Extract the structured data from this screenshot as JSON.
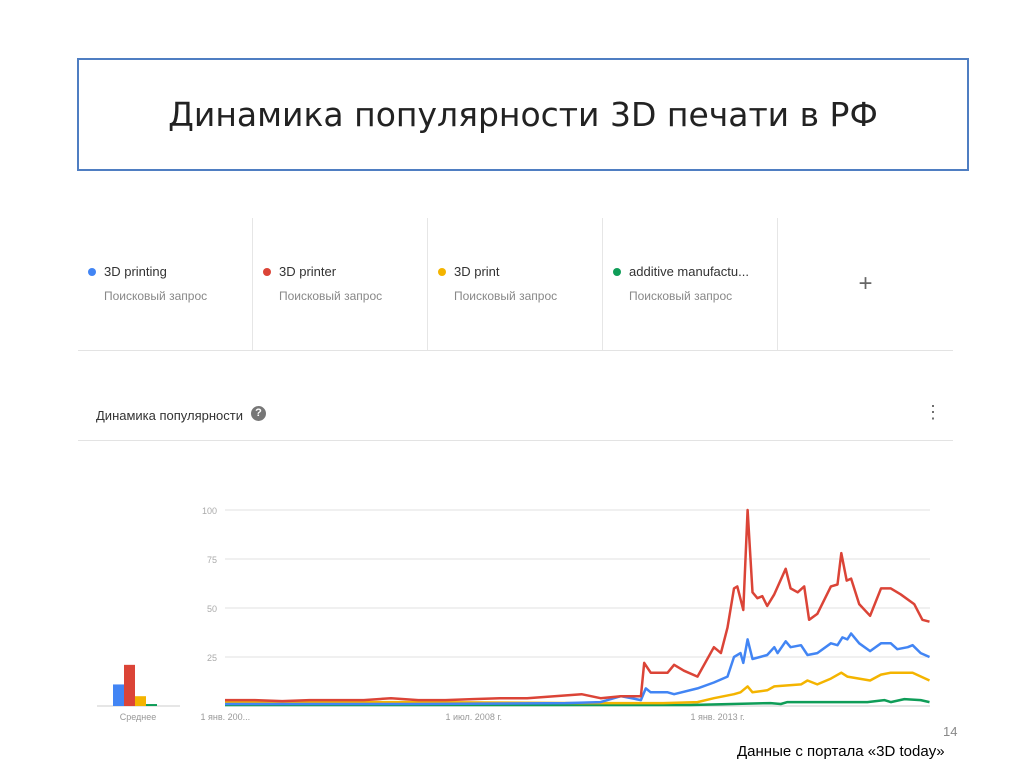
{
  "slide": {
    "title": "Динамика популярности 3D печати  в РФ",
    "footer": "Данные с портала «3D today»",
    "page_number": "14"
  },
  "terms": [
    {
      "label": "3D printing",
      "sub": "Поисковый запрос",
      "color": "#4285f4"
    },
    {
      "label": "3D printer",
      "sub": "Поисковый запрос",
      "color": "#db4437"
    },
    {
      "label": "3D print",
      "sub": "Поисковый запрос",
      "color": "#f4b400"
    },
    {
      "label": "additive manufactu...",
      "sub": "Поисковый запрос",
      "color": "#0f9d58"
    }
  ],
  "add_term_label": "+",
  "panel": {
    "title": "Динамика популярности",
    "help_icon": "?",
    "menu_icon": "⋮"
  },
  "chart_data": {
    "type": "line",
    "title": "Динамика популярности",
    "ylim": [
      0,
      100
    ],
    "xlim": [
      2004.45,
      2017.4
    ],
    "yticks": [
      100,
      75,
      50,
      25
    ],
    "ytick_labels": [
      "100",
      "75",
      "50",
      "25"
    ],
    "xticks": [
      {
        "x": 2004.0,
        "label": "1 янв. 200..."
      },
      {
        "x": 2008.5,
        "label": "1 июл. 2008 г."
      },
      {
        "x": 2013.0,
        "label": "1 янв. 2013 г."
      }
    ],
    "grid": true,
    "average": {
      "label": "Среднее",
      "values": [
        11,
        21,
        5,
        1
      ]
    },
    "series": [
      {
        "name": "3D printing",
        "color": "#4285f4",
        "points": [
          [
            2004.45,
            1
          ],
          [
            2008,
            1
          ],
          [
            2010.7,
            1.5
          ],
          [
            2011.35,
            2
          ],
          [
            2011.72,
            5
          ],
          [
            2012.09,
            3
          ],
          [
            2012.18,
            9
          ],
          [
            2012.27,
            7
          ],
          [
            2012.58,
            7
          ],
          [
            2012.7,
            6
          ],
          [
            2013.13,
            9
          ],
          [
            2013.43,
            12
          ],
          [
            2013.68,
            15
          ],
          [
            2013.8,
            25
          ],
          [
            2013.92,
            27
          ],
          [
            2013.97,
            22
          ],
          [
            2014.05,
            34
          ],
          [
            2014.14,
            24
          ],
          [
            2014.41,
            26
          ],
          [
            2014.54,
            30
          ],
          [
            2014.6,
            27
          ],
          [
            2014.75,
            33
          ],
          [
            2014.84,
            30
          ],
          [
            2015.03,
            31
          ],
          [
            2015.15,
            26
          ],
          [
            2015.33,
            27
          ],
          [
            2015.58,
            32
          ],
          [
            2015.7,
            31
          ],
          [
            2015.79,
            35
          ],
          [
            2015.88,
            34
          ],
          [
            2015.95,
            37
          ],
          [
            2016.1,
            32
          ],
          [
            2016.3,
            28
          ],
          [
            2016.5,
            32
          ],
          [
            2016.68,
            32
          ],
          [
            2016.8,
            29
          ],
          [
            2016.99,
            30
          ],
          [
            2017.08,
            31
          ],
          [
            2017.23,
            27
          ],
          [
            2017.39,
            25
          ]
        ]
      },
      {
        "name": "3D printer",
        "color": "#db4437",
        "points": [
          [
            2004.45,
            3
          ],
          [
            2005,
            3
          ],
          [
            2005.5,
            2.5
          ],
          [
            2006,
            3
          ],
          [
            2006.5,
            3
          ],
          [
            2007,
            3
          ],
          [
            2007.5,
            4
          ],
          [
            2008,
            3
          ],
          [
            2008.5,
            3
          ],
          [
            2009,
            3.5
          ],
          [
            2009.5,
            4
          ],
          [
            2010,
            4
          ],
          [
            2010.5,
            5
          ],
          [
            2011,
            6
          ],
          [
            2011.35,
            4
          ],
          [
            2011.72,
            5
          ],
          [
            2012.09,
            5
          ],
          [
            2012.15,
            22
          ],
          [
            2012.27,
            17
          ],
          [
            2012.58,
            17
          ],
          [
            2012.7,
            21
          ],
          [
            2012.88,
            18
          ],
          [
            2013.13,
            15
          ],
          [
            2013.43,
            30
          ],
          [
            2013.56,
            27
          ],
          [
            2013.68,
            40
          ],
          [
            2013.8,
            60
          ],
          [
            2013.86,
            61
          ],
          [
            2013.97,
            49
          ],
          [
            2014.05,
            100
          ],
          [
            2014.14,
            58
          ],
          [
            2014.23,
            55
          ],
          [
            2014.32,
            56
          ],
          [
            2014.41,
            51
          ],
          [
            2014.54,
            57
          ],
          [
            2014.75,
            70
          ],
          [
            2014.84,
            60
          ],
          [
            2014.97,
            58
          ],
          [
            2015.09,
            61
          ],
          [
            2015.18,
            44
          ],
          [
            2015.33,
            47
          ],
          [
            2015.58,
            61
          ],
          [
            2015.7,
            62
          ],
          [
            2015.77,
            78
          ],
          [
            2015.87,
            64
          ],
          [
            2015.95,
            65
          ],
          [
            2016.1,
            52
          ],
          [
            2016.3,
            46
          ],
          [
            2016.5,
            60
          ],
          [
            2016.68,
            60
          ],
          [
            2016.86,
            57
          ],
          [
            2017.11,
            52
          ],
          [
            2017.26,
            44
          ],
          [
            2017.39,
            43
          ]
        ]
      },
      {
        "name": "3D print",
        "color": "#f4b400",
        "points": [
          [
            2004.45,
            2
          ],
          [
            2008,
            2
          ],
          [
            2011,
            1.5
          ],
          [
            2012.5,
            1.5
          ],
          [
            2013.13,
            2
          ],
          [
            2013.43,
            4
          ],
          [
            2013.8,
            6
          ],
          [
            2013.92,
            7
          ],
          [
            2014.05,
            10
          ],
          [
            2014.14,
            7
          ],
          [
            2014.41,
            8
          ],
          [
            2014.54,
            10
          ],
          [
            2015.03,
            11
          ],
          [
            2015.15,
            13
          ],
          [
            2015.33,
            11
          ],
          [
            2015.58,
            14
          ],
          [
            2015.77,
            17
          ],
          [
            2015.88,
            15
          ],
          [
            2016.3,
            13
          ],
          [
            2016.5,
            16
          ],
          [
            2016.68,
            17
          ],
          [
            2016.86,
            17
          ],
          [
            2017.08,
            17
          ],
          [
            2017.39,
            13
          ]
        ]
      },
      {
        "name": "additive manufactu...",
        "color": "#0f9d58",
        "points": [
          [
            2004.45,
            0.5
          ],
          [
            2010,
            0.5
          ],
          [
            2013,
            0.5
          ],
          [
            2014.47,
            1.5
          ],
          [
            2014.66,
            1
          ],
          [
            2014.78,
            2
          ],
          [
            2016.25,
            2
          ],
          [
            2016.56,
            3
          ],
          [
            2016.68,
            2
          ],
          [
            2016.93,
            3.5
          ],
          [
            2017.23,
            3
          ],
          [
            2017.39,
            2
          ]
        ]
      }
    ]
  }
}
